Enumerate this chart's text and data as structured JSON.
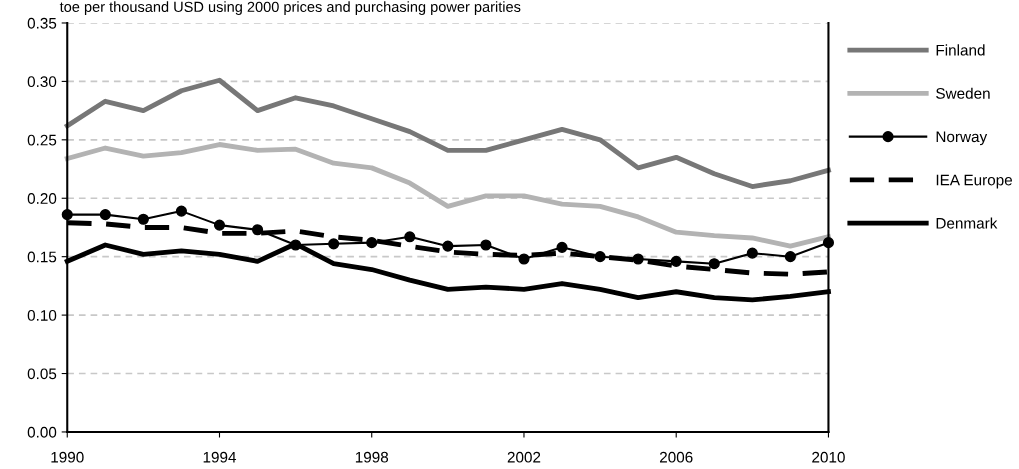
{
  "chart_data": {
    "type": "line",
    "title": "toe per thousand USD using 2000 prices and purchasing power parities",
    "x": [
      1990,
      1991,
      1992,
      1993,
      1994,
      1995,
      1996,
      1997,
      1998,
      1999,
      2000,
      2001,
      2002,
      2003,
      2004,
      2005,
      2006,
      2007,
      2008,
      2009,
      2010
    ],
    "series": [
      {
        "name": "Finland",
        "color": "#777777",
        "marker": "none",
        "line_style": "solid",
        "values": [
          0.262,
          0.283,
          0.275,
          0.292,
          0.301,
          0.275,
          0.286,
          0.279,
          0.268,
          0.257,
          0.241,
          0.241,
          0.25,
          0.259,
          0.25,
          0.226,
          0.235,
          0.221,
          0.21,
          0.215,
          0.224
        ]
      },
      {
        "name": "Sweden",
        "color": "#b3b3b3",
        "marker": "none",
        "line_style": "solid",
        "values": [
          0.234,
          0.243,
          0.236,
          0.239,
          0.246,
          0.241,
          0.242,
          0.23,
          0.226,
          0.213,
          0.193,
          0.202,
          0.202,
          0.195,
          0.193,
          0.184,
          0.171,
          0.168,
          0.166,
          0.159,
          0.167
        ]
      },
      {
        "name": "Norway",
        "color": "#000000",
        "marker": "circle",
        "line_style": "solid",
        "values": [
          0.186,
          0.186,
          0.182,
          0.189,
          0.177,
          0.173,
          0.16,
          0.161,
          0.162,
          0.167,
          0.159,
          0.16,
          0.148,
          0.158,
          0.15,
          0.148,
          0.146,
          0.144,
          0.153,
          0.15,
          0.162
        ]
      },
      {
        "name": "IEA Europe",
        "color": "#000000",
        "marker": "none",
        "line_style": "dashed",
        "values": [
          0.179,
          0.178,
          0.175,
          0.175,
          0.17,
          0.17,
          0.172,
          0.167,
          0.164,
          0.159,
          0.154,
          0.152,
          0.151,
          0.153,
          0.15,
          0.147,
          0.142,
          0.139,
          0.136,
          0.135,
          0.137
        ]
      },
      {
        "name": "Denmark",
        "color": "#000000",
        "marker": "none",
        "line_style": "solid",
        "values": [
          0.146,
          0.16,
          0.152,
          0.155,
          0.152,
          0.146,
          0.161,
          0.144,
          0.139,
          0.13,
          0.122,
          0.124,
          0.122,
          0.127,
          0.122,
          0.115,
          0.12,
          0.115,
          0.113,
          0.116,
          0.12
        ]
      }
    ],
    "xlim": [
      1990,
      2010
    ],
    "xticks": [
      1990,
      1994,
      1998,
      2002,
      2006,
      2010
    ],
    "ylim": [
      0,
      0.35
    ],
    "yticks": [
      {
        "value": 0,
        "label": "0.00"
      },
      {
        "value": 0.05,
        "label": "0.05"
      },
      {
        "value": 0.1,
        "label": "0.10"
      },
      {
        "value": 0.15,
        "label": "0.15"
      },
      {
        "value": 0.2,
        "label": "0.20"
      },
      {
        "value": 0.25,
        "label": "0.25"
      },
      {
        "value": 0.3,
        "label": "0.30"
      },
      {
        "value": 0.35,
        "label": "0.35"
      }
    ],
    "grid": "y",
    "legend": "right"
  }
}
